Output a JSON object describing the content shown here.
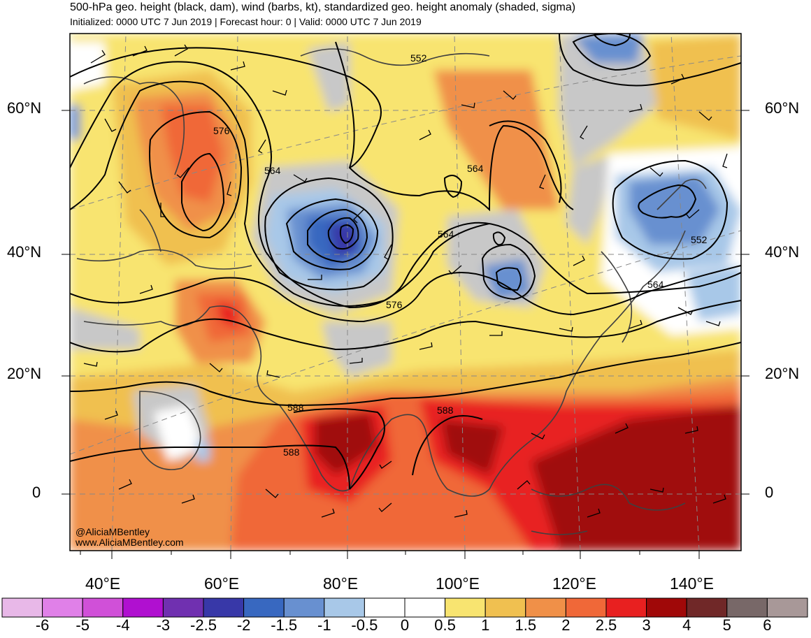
{
  "header": {
    "title": "500-hPa geo. height (black, dam), wind (barbs, kt), standardized geo. height anomaly (shaded, sigma)",
    "subtitle": "Initialized: 0000 UTC 7 Jun 2019 | Forecast hour: 0 | Valid: 0000 UTC 7 Jun 2019"
  },
  "axes": {
    "lat_labels": [
      "60°N",
      "40°N",
      "20°N",
      "0"
    ],
    "lon_labels": [
      "40°E",
      "60°E",
      "80°E",
      "100°E",
      "120°E",
      "140°E"
    ]
  },
  "contour_labels": [
    "576",
    "564",
    "552",
    "564",
    "564",
    "576",
    "564",
    "552",
    "588",
    "588",
    "588"
  ],
  "credits": {
    "handle": "@AliciaMBentley",
    "site": "www.AliciaMBentley.com"
  },
  "colorbar": {
    "labels": [
      "-6",
      "-5",
      "-4",
      "-3",
      "-2.5",
      "-2",
      "-1.5",
      "-1",
      "-0.5",
      "0",
      "0.5",
      "1",
      "1.5",
      "2",
      "2.5",
      "3",
      "4",
      "5",
      "6"
    ],
    "colors": [
      "#e8b8e8",
      "#e080e8",
      "#d050d8",
      "#b010d0",
      "#7030b0",
      "#3838a8",
      "#3868c0",
      "#6890d0",
      "#a8c8e8",
      "#ffffff",
      "#ffffff",
      "#f8e470",
      "#f0c050",
      "#f09048",
      "#f06838",
      "#e82020",
      "#a00808",
      "#702828",
      "#786868",
      "#a89898"
    ]
  },
  "colors": {
    "gray_neutral": "#c8c8c8",
    "coast": "#404040"
  }
}
